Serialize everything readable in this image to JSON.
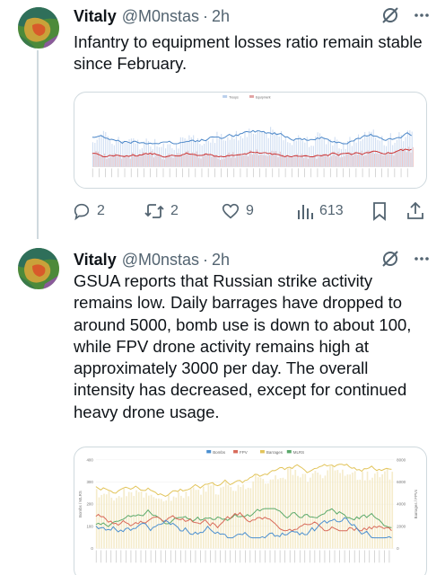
{
  "tweets": [
    {
      "name": "Vitaly",
      "handle": "@M0nstas",
      "separator": "·",
      "time": "2h",
      "text": "Infantry to equipment losses ratio remain stable since February.",
      "stats": {
        "replies": "2",
        "reposts": "2",
        "likes": "9",
        "views": "613"
      },
      "chart": {
        "legend": [
          "Troops",
          "Equipment"
        ],
        "colors": {
          "troops": "#4a86c8",
          "equipment": "#cc3333",
          "bars_troops": "#b9cfec",
          "bars_equipment": "#e2a3a3"
        }
      }
    },
    {
      "name": "Vitaly",
      "handle": "@M0nstas",
      "separator": "·",
      "time": "2h",
      "text": "GSUA reports that Russian strike activity remains low. Daily barrages have dropped to around 5000, bomb use is down to about 100, while FPV drone activity remains high at approximately 3000 per day. The overall intensity has decreased, except for continued heavy drone usage.",
      "chart": {
        "legend": [
          "Bombs",
          "FPV",
          "Barrages",
          "MLRS"
        ],
        "left_axis_title": "Bombs / MLRS",
        "right_axis_title": "Barrages / FPVs",
        "left_ticks": [
          "400",
          "300",
          "200",
          "100",
          "0"
        ],
        "right_ticks": [
          "8000",
          "6000",
          "4000",
          "2000",
          "0"
        ],
        "colors": {
          "bombs": "#4a8fd0",
          "fpv": "#d86a5a",
          "barrages": "#e2c45a",
          "mlrs": "#5aa86a"
        }
      }
    }
  ]
}
